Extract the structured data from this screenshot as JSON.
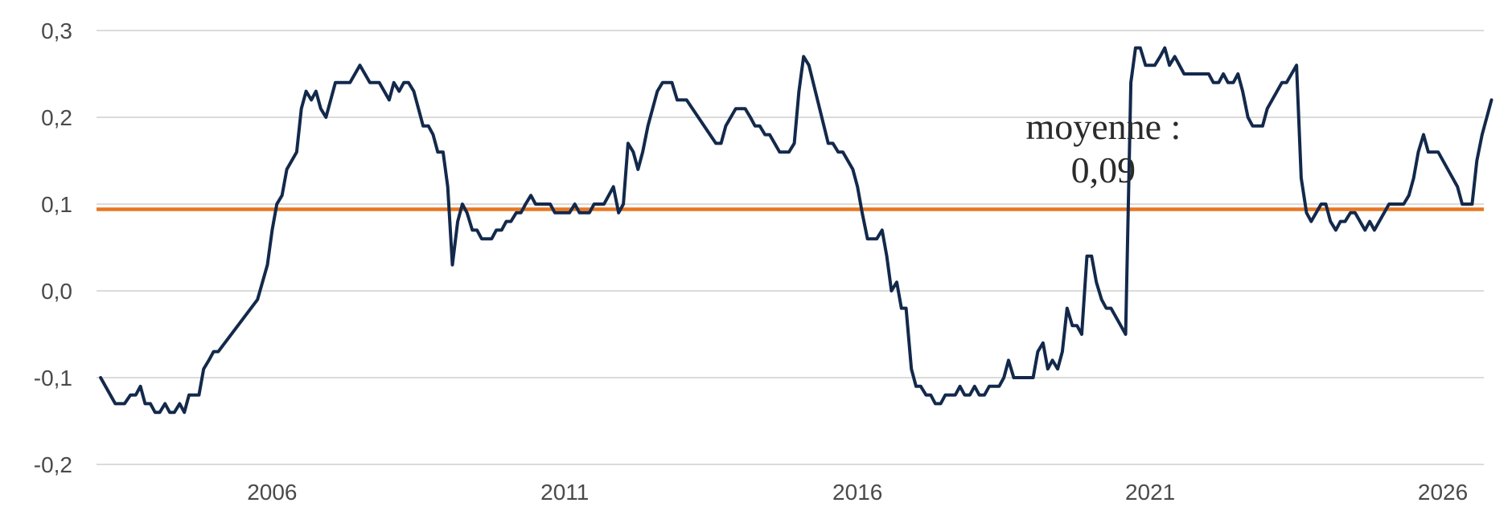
{
  "chart_data": {
    "type": "line",
    "title": "",
    "xlabel": "",
    "ylabel": "",
    "xlim": [
      2003.0,
      2026.7
    ],
    "ylim": [
      -0.2,
      0.3
    ],
    "grid": true,
    "legend": "none",
    "x_ticks": [
      {
        "value": 2006,
        "label": "2006"
      },
      {
        "value": 2011,
        "label": "2011"
      },
      {
        "value": 2016,
        "label": "2016"
      },
      {
        "value": 2021,
        "label": "2021"
      },
      {
        "value": 2026,
        "label": "2026"
      }
    ],
    "y_ticks": [
      {
        "value": 0.3,
        "label": "0,3"
      },
      {
        "value": 0.2,
        "label": "0,2"
      },
      {
        "value": 0.1,
        "label": "0,1"
      },
      {
        "value": 0.0,
        "label": "0,0"
      },
      {
        "value": -0.1,
        "label": "-0,1"
      },
      {
        "value": -0.2,
        "label": "-0,2"
      }
    ],
    "series": [
      {
        "color": "#13294b",
        "points": [
          [
            2003.07,
            -0.1
          ],
          [
            2003.32,
            -0.13
          ],
          [
            2003.48,
            -0.13
          ],
          [
            2003.58,
            -0.12
          ],
          [
            2003.67,
            -0.12
          ],
          [
            2003.75,
            -0.11
          ],
          [
            2003.83,
            -0.13
          ],
          [
            2003.92,
            -0.13
          ],
          [
            2004.0,
            -0.14
          ],
          [
            2004.08,
            -0.14
          ],
          [
            2004.17,
            -0.13
          ],
          [
            2004.25,
            -0.14
          ],
          [
            2004.33,
            -0.14
          ],
          [
            2004.42,
            -0.13
          ],
          [
            2004.5,
            -0.14
          ],
          [
            2004.58,
            -0.12
          ],
          [
            2004.75,
            -0.12
          ],
          [
            2004.83,
            -0.09
          ],
          [
            2004.92,
            -0.08
          ],
          [
            2005.0,
            -0.07
          ],
          [
            2005.08,
            -0.07
          ],
          [
            2005.75,
            -0.01
          ],
          [
            2005.92,
            0.03
          ],
          [
            2006.0,
            0.07
          ],
          [
            2006.08,
            0.1
          ],
          [
            2006.17,
            0.11
          ],
          [
            2006.25,
            0.14
          ],
          [
            2006.42,
            0.16
          ],
          [
            2006.5,
            0.21
          ],
          [
            2006.58,
            0.23
          ],
          [
            2006.67,
            0.22
          ],
          [
            2006.75,
            0.23
          ],
          [
            2006.83,
            0.21
          ],
          [
            2006.92,
            0.2
          ],
          [
            2007.08,
            0.24
          ],
          [
            2007.33,
            0.24
          ],
          [
            2007.5,
            0.26
          ],
          [
            2007.67,
            0.24
          ],
          [
            2007.83,
            0.24
          ],
          [
            2008.0,
            0.22
          ],
          [
            2008.08,
            0.24
          ],
          [
            2008.17,
            0.23
          ],
          [
            2008.25,
            0.24
          ],
          [
            2008.33,
            0.24
          ],
          [
            2008.42,
            0.23
          ],
          [
            2008.58,
            0.19
          ],
          [
            2008.67,
            0.19
          ],
          [
            2008.75,
            0.18
          ],
          [
            2008.83,
            0.16
          ],
          [
            2008.92,
            0.16
          ],
          [
            2009.0,
            0.12
          ],
          [
            2009.08,
            0.03
          ],
          [
            2009.17,
            0.08
          ],
          [
            2009.25,
            0.1
          ],
          [
            2009.33,
            0.09
          ],
          [
            2009.42,
            0.07
          ],
          [
            2009.5,
            0.07
          ],
          [
            2009.58,
            0.06
          ],
          [
            2009.75,
            0.06
          ],
          [
            2009.83,
            0.07
          ],
          [
            2009.92,
            0.07
          ],
          [
            2010.0,
            0.08
          ],
          [
            2010.08,
            0.08
          ],
          [
            2010.17,
            0.09
          ],
          [
            2010.25,
            0.09
          ],
          [
            2010.33,
            0.1
          ],
          [
            2010.42,
            0.11
          ],
          [
            2010.5,
            0.1
          ],
          [
            2010.75,
            0.1
          ],
          [
            2010.83,
            0.09
          ],
          [
            2011.08,
            0.09
          ],
          [
            2011.17,
            0.1
          ],
          [
            2011.25,
            0.09
          ],
          [
            2011.42,
            0.09
          ],
          [
            2011.5,
            0.1
          ],
          [
            2011.67,
            0.1
          ],
          [
            2011.75,
            0.11
          ],
          [
            2011.83,
            0.12
          ],
          [
            2011.92,
            0.09
          ],
          [
            2012.0,
            0.1
          ],
          [
            2012.08,
            0.17
          ],
          [
            2012.17,
            0.16
          ],
          [
            2012.25,
            0.14
          ],
          [
            2012.33,
            0.16
          ],
          [
            2012.42,
            0.19
          ],
          [
            2012.58,
            0.23
          ],
          [
            2012.67,
            0.24
          ],
          [
            2012.83,
            0.24
          ],
          [
            2012.92,
            0.22
          ],
          [
            2013.08,
            0.22
          ],
          [
            2013.58,
            0.17
          ],
          [
            2013.67,
            0.17
          ],
          [
            2013.75,
            0.19
          ],
          [
            2013.92,
            0.21
          ],
          [
            2014.08,
            0.21
          ],
          [
            2014.17,
            0.2
          ],
          [
            2014.25,
            0.19
          ],
          [
            2014.33,
            0.19
          ],
          [
            2014.42,
            0.18
          ],
          [
            2014.5,
            0.18
          ],
          [
            2014.67,
            0.16
          ],
          [
            2014.83,
            0.16
          ],
          [
            2014.92,
            0.17
          ],
          [
            2015.0,
            0.23
          ],
          [
            2015.08,
            0.27
          ],
          [
            2015.17,
            0.26
          ],
          [
            2015.5,
            0.17
          ],
          [
            2015.58,
            0.17
          ],
          [
            2015.67,
            0.16
          ],
          [
            2015.75,
            0.16
          ],
          [
            2015.92,
            0.14
          ],
          [
            2016.0,
            0.12
          ],
          [
            2016.08,
            0.09
          ],
          [
            2016.17,
            0.06
          ],
          [
            2016.33,
            0.06
          ],
          [
            2016.42,
            0.07
          ],
          [
            2016.5,
            0.04
          ],
          [
            2016.58,
            0.0
          ],
          [
            2016.67,
            0.01
          ],
          [
            2016.75,
            -0.02
          ],
          [
            2016.83,
            -0.02
          ],
          [
            2016.92,
            -0.09
          ],
          [
            2017.0,
            -0.11
          ],
          [
            2017.08,
            -0.11
          ],
          [
            2017.17,
            -0.12
          ],
          [
            2017.25,
            -0.12
          ],
          [
            2017.33,
            -0.13
          ],
          [
            2017.42,
            -0.13
          ],
          [
            2017.5,
            -0.12
          ],
          [
            2017.67,
            -0.12
          ],
          [
            2017.75,
            -0.11
          ],
          [
            2017.83,
            -0.12
          ],
          [
            2017.92,
            -0.12
          ],
          [
            2018.0,
            -0.11
          ],
          [
            2018.08,
            -0.12
          ],
          [
            2018.17,
            -0.12
          ],
          [
            2018.25,
            -0.11
          ],
          [
            2018.42,
            -0.11
          ],
          [
            2018.5,
            -0.1
          ],
          [
            2018.58,
            -0.08
          ],
          [
            2018.67,
            -0.1
          ],
          [
            2019.0,
            -0.1
          ],
          [
            2019.08,
            -0.07
          ],
          [
            2019.17,
            -0.06
          ],
          [
            2019.25,
            -0.09
          ],
          [
            2019.33,
            -0.08
          ],
          [
            2019.42,
            -0.09
          ],
          [
            2019.5,
            -0.07
          ],
          [
            2019.58,
            -0.02
          ],
          [
            2019.67,
            -0.04
          ],
          [
            2019.75,
            -0.04
          ],
          [
            2019.83,
            -0.05
          ],
          [
            2019.92,
            0.04
          ],
          [
            2020.0,
            0.04
          ],
          [
            2020.08,
            0.01
          ],
          [
            2020.17,
            -0.01
          ],
          [
            2020.25,
            -0.02
          ],
          [
            2020.33,
            -0.02
          ],
          [
            2020.58,
            -0.05
          ],
          [
            2020.67,
            0.24
          ],
          [
            2020.75,
            0.28
          ],
          [
            2020.83,
            0.28
          ],
          [
            2020.92,
            0.26
          ],
          [
            2021.08,
            0.26
          ],
          [
            2021.17,
            0.27
          ],
          [
            2021.25,
            0.28
          ],
          [
            2021.33,
            0.26
          ],
          [
            2021.42,
            0.27
          ],
          [
            2021.58,
            0.25
          ],
          [
            2022.0,
            0.25
          ],
          [
            2022.08,
            0.24
          ],
          [
            2022.17,
            0.24
          ],
          [
            2022.25,
            0.25
          ],
          [
            2022.33,
            0.24
          ],
          [
            2022.42,
            0.24
          ],
          [
            2022.5,
            0.25
          ],
          [
            2022.58,
            0.23
          ],
          [
            2022.67,
            0.2
          ],
          [
            2022.75,
            0.19
          ],
          [
            2022.92,
            0.19
          ],
          [
            2023.0,
            0.21
          ],
          [
            2023.25,
            0.24
          ],
          [
            2023.33,
            0.24
          ],
          [
            2023.5,
            0.26
          ],
          [
            2023.58,
            0.13
          ],
          [
            2023.67,
            0.09
          ],
          [
            2023.75,
            0.08
          ],
          [
            2023.92,
            0.1
          ],
          [
            2024.0,
            0.1
          ],
          [
            2024.08,
            0.08
          ],
          [
            2024.17,
            0.07
          ],
          [
            2024.25,
            0.08
          ],
          [
            2024.33,
            0.08
          ],
          [
            2024.42,
            0.09
          ],
          [
            2024.5,
            0.09
          ],
          [
            2024.67,
            0.07
          ],
          [
            2024.75,
            0.08
          ],
          [
            2024.83,
            0.07
          ],
          [
            2025.08,
            0.1
          ],
          [
            2025.33,
            0.1
          ],
          [
            2025.42,
            0.11
          ],
          [
            2025.5,
            0.13
          ],
          [
            2025.58,
            0.16
          ],
          [
            2025.67,
            0.18
          ],
          [
            2025.75,
            0.16
          ],
          [
            2025.92,
            0.16
          ],
          [
            2026.25,
            0.12
          ],
          [
            2026.33,
            0.1
          ],
          [
            2026.5,
            0.1
          ],
          [
            2026.58,
            0.15
          ],
          [
            2026.67,
            0.18
          ],
          [
            2026.83,
            0.22
          ]
        ]
      }
    ],
    "reference_line": {
      "value": 0.094,
      "color": "#e87722"
    },
    "annotation": {
      "line1": "moyenne :",
      "line2": "0,09",
      "x": 2020.2,
      "y1": 0.175,
      "y2": 0.125
    },
    "gridline_color": "#cfcfcf"
  }
}
